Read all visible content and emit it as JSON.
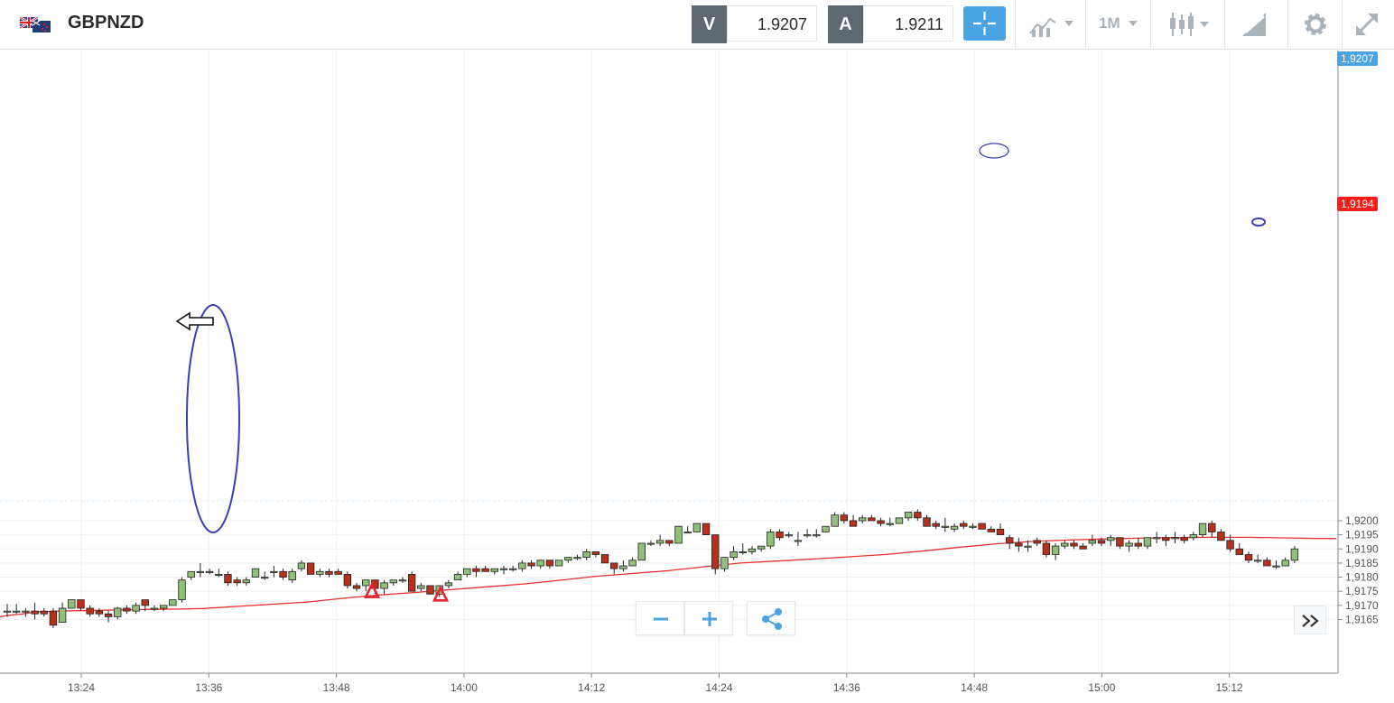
{
  "symbol": {
    "name": "GBPNZD",
    "flag_icon": "uk-nz-flag-icon"
  },
  "bid": {
    "label": "V",
    "value": "1.9207"
  },
  "ask": {
    "label": "A",
    "value": "1.9211"
  },
  "toolbar": {
    "crosshair_icon": "crosshair-icon",
    "indicators_icon": "indicators-icon",
    "timeframe": "1M",
    "chart_type_icon": "candlestick-icon",
    "drawing_icon": "drawing-tools-icon",
    "settings_icon": "gear-icon",
    "fullscreen_icon": "fullscreen-icon"
  },
  "controls": {
    "zoom_out_icon": "minus-icon",
    "zoom_in_icon": "plus-icon",
    "share_icon": "share-icon",
    "expand_icon": "double-chevron-right-icon"
  },
  "price_tags": {
    "current": "1,9207",
    "ma": "1,9194",
    "current_color": "#4aa3e2",
    "ma_color": "#ff1a1a"
  },
  "colors": {
    "up": "#8fbf7a",
    "down": "#b8301a",
    "ma": "#e83030",
    "annotation": "#3a3fb5",
    "marker": "#e8222e"
  },
  "chart_data": {
    "type": "candlestick",
    "symbol": "GBPNZD",
    "timeframe": "1M",
    "yaxis": {
      "range": [
        1.916,
        1.921
      ],
      "ticks": [
        "1,9165",
        "1,9170",
        "1,9175",
        "1,9180",
        "1,9185",
        "1,9190",
        "1,9195",
        "1,9200"
      ]
    },
    "xaxis": {
      "ticks": [
        "13:24",
        "13:36",
        "13:48",
        "14:00",
        "14:12",
        "14:24",
        "14:36",
        "14:48",
        "15:00",
        "15:12"
      ]
    },
    "candles": [
      [
        1.9168,
        1.91705,
        1.9166,
        1.9168
      ],
      [
        1.9168,
        1.91705,
        1.9167,
        1.9168
      ],
      [
        1.9168,
        1.9169,
        1.9166,
        1.9168
      ],
      [
        1.9168,
        1.9171,
        1.9165,
        1.9167
      ],
      [
        1.9168,
        1.9169,
        1.9166,
        1.9167
      ],
      [
        1.9168,
        1.9169,
        1.9162,
        1.9163
      ],
      [
        1.9164,
        1.9171,
        1.9164,
        1.9169
      ],
      [
        1.9169,
        1.9172,
        1.9169,
        1.9172
      ],
      [
        1.9172,
        1.9172,
        1.9168,
        1.9169
      ],
      [
        1.9169,
        1.917,
        1.9166,
        1.9167
      ],
      [
        1.9168,
        1.9169,
        1.9166,
        1.9167
      ],
      [
        1.9167,
        1.9168,
        1.9164,
        1.9166
      ],
      [
        1.9166,
        1.91695,
        1.9165,
        1.9169
      ],
      [
        1.9169,
        1.917,
        1.9167,
        1.9168
      ],
      [
        1.9168,
        1.9171,
        1.9167,
        1.917
      ],
      [
        1.9172,
        1.9172,
        1.9168,
        1.917
      ],
      [
        1.9169,
        1.917,
        1.9168,
        1.9169
      ],
      [
        1.9169,
        1.917,
        1.9168,
        1.917
      ],
      [
        1.917,
        1.9172,
        1.917,
        1.9172
      ],
      [
        1.9172,
        1.918,
        1.9171,
        1.9179
      ],
      [
        1.918,
        1.9182,
        1.9179,
        1.9182
      ],
      [
        1.9182,
        1.9185,
        1.918,
        1.9182
      ],
      [
        1.9182,
        1.9183,
        1.9181,
        1.9182
      ],
      [
        1.9181,
        1.9183,
        1.918,
        1.9181
      ],
      [
        1.9181,
        1.9182,
        1.9177,
        1.9178
      ],
      [
        1.9179,
        1.918,
        1.9177,
        1.9178
      ],
      [
        1.9178,
        1.918,
        1.9177,
        1.9179
      ],
      [
        1.918,
        1.9183,
        1.918,
        1.9183
      ],
      [
        1.918,
        1.9182,
        1.9179,
        1.918
      ],
      [
        1.9182,
        1.9184,
        1.918,
        1.9182
      ],
      [
        1.9182,
        1.9183,
        1.9179,
        1.918
      ],
      [
        1.9179,
        1.9183,
        1.9178,
        1.9182
      ],
      [
        1.9183,
        1.9186,
        1.9182,
        1.9185
      ],
      [
        1.9185,
        1.9185,
        1.9181,
        1.9181
      ],
      [
        1.9181,
        1.9183,
        1.918,
        1.9182
      ],
      [
        1.9182,
        1.9183,
        1.918,
        1.9181
      ],
      [
        1.9182,
        1.9183,
        1.9181,
        1.9181
      ],
      [
        1.9181,
        1.9182,
        1.9176,
        1.9177
      ],
      [
        1.9177,
        1.9178,
        1.9175,
        1.9176
      ],
      [
        1.9177,
        1.9179,
        1.9175,
        1.9179
      ],
      [
        1.9179,
        1.9179,
        1.9174,
        1.9176
      ],
      [
        1.9176,
        1.9179,
        1.9174,
        1.9178
      ],
      [
        1.9178,
        1.9179,
        1.9177,
        1.9179
      ],
      [
        1.9179,
        1.918,
        1.9178,
        1.9179
      ],
      [
        1.9181,
        1.9182,
        1.9175,
        1.9175
      ],
      [
        1.9176,
        1.9178,
        1.9175,
        1.9177
      ],
      [
        1.9177,
        1.9177,
        1.9174,
        1.9174
      ],
      [
        1.9174,
        1.9177,
        1.9173,
        1.9177
      ],
      [
        1.9177,
        1.9179,
        1.9176,
        1.9178
      ],
      [
        1.9179,
        1.9182,
        1.9179,
        1.9181
      ],
      [
        1.9181,
        1.9183,
        1.918,
        1.9183
      ],
      [
        1.9183,
        1.9184,
        1.918,
        1.9182
      ],
      [
        1.9183,
        1.9184,
        1.9182,
        1.9182
      ],
      [
        1.9182,
        1.9183,
        1.9181,
        1.9183
      ],
      [
        1.9183,
        1.9184,
        1.9181,
        1.9183
      ],
      [
        1.9183,
        1.9184,
        1.9182,
        1.9183
      ],
      [
        1.9183,
        1.9186,
        1.9182,
        1.9185
      ],
      [
        1.9185,
        1.9186,
        1.9183,
        1.9184
      ],
      [
        1.9184,
        1.9186,
        1.9183,
        1.9186
      ],
      [
        1.9186,
        1.9186,
        1.9183,
        1.9184
      ],
      [
        1.9184,
        1.9186,
        1.9184,
        1.9186
      ],
      [
        1.9186,
        1.9187,
        1.9185,
        1.9187
      ],
      [
        1.9187,
        1.9188,
        1.9186,
        1.9187
      ],
      [
        1.9187,
        1.919,
        1.9186,
        1.9189
      ],
      [
        1.9189,
        1.9189,
        1.9187,
        1.9188
      ],
      [
        1.9188,
        1.9188,
        1.9185,
        1.9185
      ],
      [
        1.9185,
        1.9185,
        1.9181,
        1.9183
      ],
      [
        1.9183,
        1.9186,
        1.9182,
        1.9184
      ],
      [
        1.9184,
        1.9187,
        1.9184,
        1.9186
      ],
      [
        1.9186,
        1.9192,
        1.9186,
        1.9192
      ],
      [
        1.9192,
        1.9193,
        1.9191,
        1.9192
      ],
      [
        1.9192,
        1.9195,
        1.9191,
        1.9193
      ],
      [
        1.9193,
        1.9193,
        1.9191,
        1.9192
      ],
      [
        1.9192,
        1.9198,
        1.9192,
        1.9198
      ],
      [
        1.9196,
        1.9198,
        1.9196,
        1.9196
      ],
      [
        1.9196,
        1.9199,
        1.9196,
        1.9199
      ],
      [
        1.9199,
        1.9199,
        1.9195,
        1.9195
      ],
      [
        1.9195,
        1.9195,
        1.9181,
        1.9183
      ],
      [
        1.9183,
        1.9187,
        1.9182,
        1.9187
      ],
      [
        1.9187,
        1.9191,
        1.9186,
        1.9189
      ],
      [
        1.9189,
        1.9192,
        1.9188,
        1.9189
      ],
      [
        1.9189,
        1.9191,
        1.9188,
        1.919
      ],
      [
        1.919,
        1.9191,
        1.9189,
        1.9191
      ],
      [
        1.9191,
        1.9197,
        1.919,
        1.9196
      ],
      [
        1.9196,
        1.9197,
        1.9193,
        1.9194
      ],
      [
        1.9195,
        1.9196,
        1.9194,
        1.9195
      ],
      [
        1.9193,
        1.9196,
        1.9191,
        1.9193
      ],
      [
        1.9195,
        1.9197,
        1.9194,
        1.9195
      ],
      [
        1.9195,
        1.9197,
        1.9194,
        1.9195
      ],
      [
        1.9196,
        1.9198,
        1.9196,
        1.9198
      ],
      [
        1.9198,
        1.9203,
        1.9198,
        1.9202
      ],
      [
        1.9202,
        1.9203,
        1.9199,
        1.92
      ],
      [
        1.92,
        1.9202,
        1.9198,
        1.9198
      ],
      [
        1.92,
        1.9202,
        1.9199,
        1.9201
      ],
      [
        1.9201,
        1.9202,
        1.92,
        1.92
      ],
      [
        1.92,
        1.9201,
        1.9198,
        1.9199
      ],
      [
        1.9199,
        1.9201,
        1.9198,
        1.9199
      ],
      [
        1.9199,
        1.9201,
        1.9199,
        1.9201
      ],
      [
        1.9201,
        1.9203,
        1.92,
        1.9203
      ],
      [
        1.9203,
        1.9204,
        1.92,
        1.9201
      ],
      [
        1.9201,
        1.9202,
        1.9198,
        1.9198
      ],
      [
        1.9199,
        1.92,
        1.9197,
        1.9198
      ],
      [
        1.9198,
        1.9201,
        1.9196,
        1.9198
      ],
      [
        1.9197,
        1.9199,
        1.9196,
        1.9198
      ],
      [
        1.9199,
        1.92,
        1.9197,
        1.9198
      ],
      [
        1.9198,
        1.9199,
        1.9197,
        1.9198
      ],
      [
        1.9199,
        1.9199,
        1.9197,
        1.9197
      ],
      [
        1.9197,
        1.9198,
        1.9196,
        1.9196
      ],
      [
        1.9197,
        1.9199,
        1.9195,
        1.9195
      ],
      [
        1.9194,
        1.9195,
        1.919,
        1.9192
      ],
      [
        1.9192,
        1.9194,
        1.9189,
        1.9191
      ],
      [
        1.9191,
        1.9193,
        1.9189,
        1.9191
      ],
      [
        1.9193,
        1.9194,
        1.9191,
        1.9192
      ],
      [
        1.9192,
        1.9193,
        1.9187,
        1.9188
      ],
      [
        1.9188,
        1.9192,
        1.9186,
        1.9191
      ],
      [
        1.9191,
        1.9193,
        1.919,
        1.9192
      ],
      [
        1.9192,
        1.9193,
        1.919,
        1.9191
      ],
      [
        1.9191,
        1.9192,
        1.919,
        1.919
      ],
      [
        1.9192,
        1.9195,
        1.9191,
        1.9193
      ],
      [
        1.9193,
        1.9194,
        1.9191,
        1.9192
      ],
      [
        1.9193,
        1.9195,
        1.9191,
        1.9194
      ],
      [
        1.9194,
        1.9194,
        1.919,
        1.9191
      ],
      [
        1.9191,
        1.9193,
        1.9189,
        1.9192
      ],
      [
        1.9192,
        1.9194,
        1.919,
        1.9191
      ],
      [
        1.9191,
        1.9194,
        1.919,
        1.9194
      ],
      [
        1.9194,
        1.9196,
        1.9192,
        1.9194
      ],
      [
        1.9194,
        1.9195,
        1.9191,
        1.9193
      ],
      [
        1.9194,
        1.9196,
        1.9192,
        1.9194
      ],
      [
        1.9194,
        1.9195,
        1.9192,
        1.9193
      ],
      [
        1.9194,
        1.9196,
        1.9193,
        1.9195
      ],
      [
        1.9195,
        1.9199,
        1.9194,
        1.9199
      ],
      [
        1.9199,
        1.92,
        1.9194,
        1.9196
      ],
      [
        1.9196,
        1.9197,
        1.9193,
        1.9193
      ],
      [
        1.9193,
        1.9195,
        1.9189,
        1.919
      ],
      [
        1.919,
        1.9192,
        1.9188,
        1.9188
      ],
      [
        1.9188,
        1.9189,
        1.9185,
        1.9186
      ],
      [
        1.9186,
        1.9188,
        1.9185,
        1.9186
      ],
      [
        1.9186,
        1.9187,
        1.9184,
        1.9184
      ],
      [
        1.9184,
        1.9186,
        1.9183,
        1.9184
      ],
      [
        1.9184,
        1.9187,
        1.9184,
        1.9186
      ],
      [
        1.9186,
        1.9191,
        1.9185,
        1.919
      ]
    ],
    "moving_average": [
      [
        0,
        1.9166
      ],
      [
        10,
        1.91665
      ],
      [
        20,
        1.91668
      ],
      [
        30,
        1.91672
      ],
      [
        40,
        1.91677
      ],
      [
        60,
        1.91679
      ],
      [
        80,
        1.91681
      ],
      [
        100,
        1.91682
      ],
      [
        130,
        1.91684
      ],
      [
        170,
        1.91686
      ],
      [
        200,
        1.91687
      ],
      [
        225,
        1.91689
      ],
      [
        260,
        1.91696
      ],
      [
        300,
        1.91704
      ],
      [
        340,
        1.91712
      ],
      [
        380,
        1.91725
      ],
      [
        420,
        1.91737
      ],
      [
        460,
        1.91746
      ],
      [
        500,
        1.91756
      ],
      [
        540,
        1.91766
      ],
      [
        580,
        1.91776
      ],
      [
        620,
        1.91789
      ],
      [
        660,
        1.91803
      ],
      [
        700,
        1.91813
      ],
      [
        740,
        1.91823
      ],
      [
        780,
        1.91837
      ],
      [
        820,
        1.9185
      ],
      [
        860,
        1.91857
      ],
      [
        900,
        1.91864
      ],
      [
        940,
        1.91872
      ],
      [
        980,
        1.9188
      ],
      [
        1020,
        1.91892
      ],
      [
        1060,
        1.91905
      ],
      [
        1100,
        1.91917
      ],
      [
        1140,
        1.91926
      ],
      [
        1180,
        1.91931
      ],
      [
        1220,
        1.91935
      ],
      [
        1260,
        1.91938
      ],
      [
        1300,
        1.9194
      ],
      [
        1340,
        1.91941
      ],
      [
        1380,
        1.91941
      ],
      [
        1420,
        1.91939
      ],
      [
        1460,
        1.91937
      ],
      [
        1480,
        1.91937
      ]
    ],
    "markers": [
      {
        "type": "triangle",
        "x": 412,
        "price": 1.91752
      },
      {
        "type": "triangle",
        "x": 488,
        "price": 1.9174
      }
    ],
    "annotations": [
      {
        "type": "ellipse",
        "label": ""
      },
      {
        "type": "arrow",
        "direction": "left"
      },
      {
        "type": "ellipse",
        "label": ""
      },
      {
        "type": "ellipse",
        "label": ""
      }
    ],
    "current_price": 1.9207,
    "ma_value": 1.9194
  }
}
